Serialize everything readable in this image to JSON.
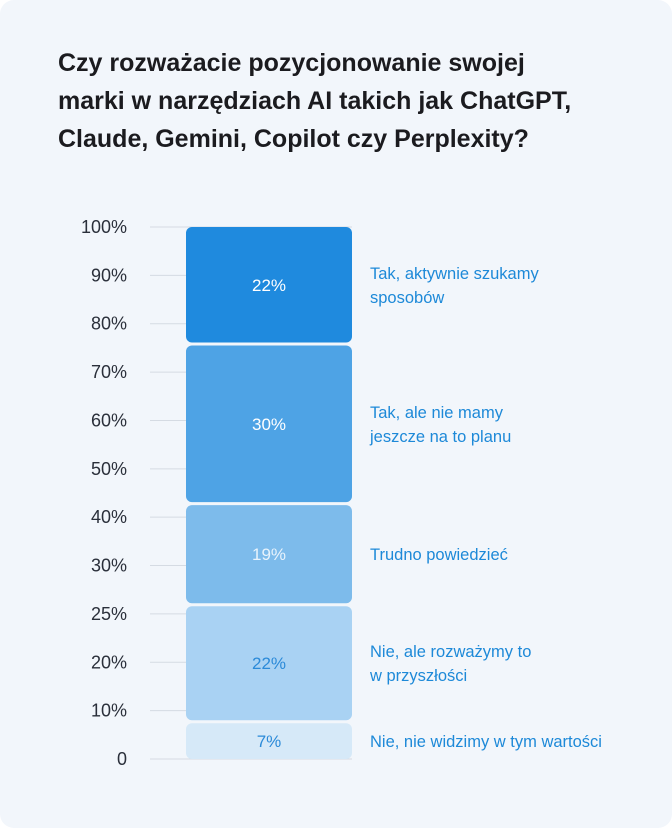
{
  "title": "Czy rozważacie pozycjonowanie swojej\nmarki w narzędziach AI takich jak ChatGPT,\nClaude, Gemini, Copilot czy Perplexity?",
  "chart_data": {
    "type": "bar",
    "stacked": true,
    "title": "Czy rozważacie pozycjonowanie swojej marki w narzędziach AI takich jak ChatGPT, Claude, Gemini, Copilot czy Perplexity?",
    "y_ticks": [
      "0",
      "10%",
      "20%",
      "25%",
      "30%",
      "40%",
      "50%",
      "60%",
      "70%",
      "80%",
      "90%",
      "100%"
    ],
    "ylim": [
      0,
      100
    ],
    "grid": true,
    "series": [
      {
        "name": "Nie, nie widzimy w tym wartości",
        "value": 7,
        "label": "7%",
        "color": "#d6e9f8",
        "text_color": "#2b8ad8"
      },
      {
        "name": "Nie, ale rozważymy to\nw przyszłości",
        "value": 22,
        "label": "22%",
        "color": "#a9d2f3",
        "text_color": "#2b8ad8"
      },
      {
        "name": "Trudno powiedzieć",
        "value": 19,
        "label": "19%",
        "color": "#7dbbeb",
        "text_color": "#e8f3fc"
      },
      {
        "name": "Tak, ale nie mamy\njeszcze na to planu",
        "value": 30,
        "label": "30%",
        "color": "#4ea3e5",
        "text_color": "#ffffff"
      },
      {
        "name": "Tak, aktywnie szukamy\nsposobów",
        "value": 22,
        "label": "22%",
        "color": "#1f8ade",
        "text_color": "#ffffff"
      }
    ]
  }
}
